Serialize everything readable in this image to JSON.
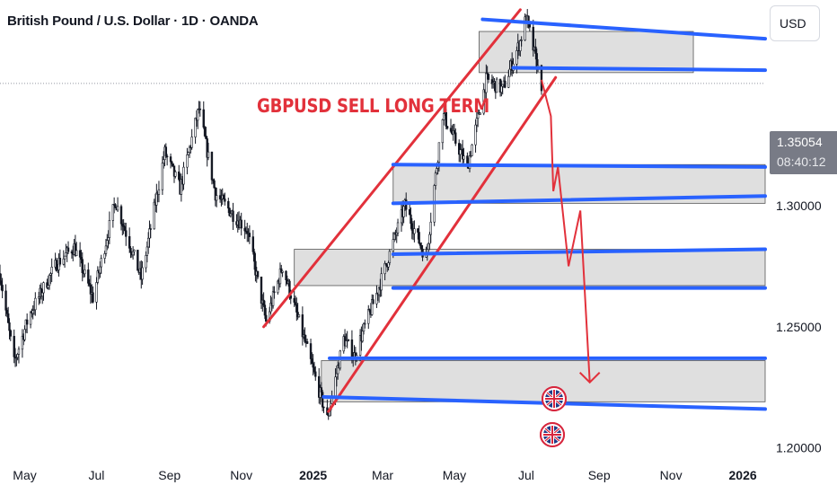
{
  "header": {
    "title": "British Pound / U.S. Dollar · 1D · OANDA",
    "currency": "USD"
  },
  "price_badge": {
    "price": "1.35054",
    "countdown": "08:40:12"
  },
  "annotation": "GBPUSD SELL LONG TERM",
  "icons": [
    "uk-flag-icon",
    "uk-flag-icon"
  ],
  "colors": {
    "candle": "#131722",
    "support_resistance": "#2962ff",
    "channel": "#e2313b",
    "projection": "#e2313b",
    "zone_fill": "#d9d9d9",
    "price_badge": "#787b86"
  },
  "chart_data": {
    "type": "candlestick",
    "symbol": "GBPUSD",
    "timeframe": "1D",
    "x_ticks": [
      "May",
      "Jul",
      "Sep",
      "Nov",
      "2025",
      "Mar",
      "May",
      "Jul",
      "Sep",
      "Nov",
      "2026"
    ],
    "x_range": [
      "2024-04-10",
      "2026-01-20"
    ],
    "y_ticks": [
      "1.20000",
      "1.25000",
      "1.30000"
    ],
    "ylim": [
      1.195,
      1.385
    ],
    "last_price": 1.35054,
    "price_path": [
      [
        "2024-04-10",
        1.272
      ],
      [
        "2024-04-22",
        1.235
      ],
      [
        "2024-05-05",
        1.255
      ],
      [
        "2024-05-28",
        1.276
      ],
      [
        "2024-06-12",
        1.283
      ],
      [
        "2024-06-28",
        1.262
      ],
      [
        "2024-07-17",
        1.302
      ],
      [
        "2024-08-08",
        1.27
      ],
      [
        "2024-08-28",
        1.322
      ],
      [
        "2024-09-10",
        1.307
      ],
      [
        "2024-09-26",
        1.34
      ],
      [
        "2024-10-10",
        1.305
      ],
      [
        "2024-10-24",
        1.297
      ],
      [
        "2024-11-06",
        1.29
      ],
      [
        "2024-11-22",
        1.252
      ],
      [
        "2024-12-06",
        1.275
      ],
      [
        "2024-12-20",
        1.252
      ],
      [
        "2025-01-13",
        1.212
      ],
      [
        "2025-01-27",
        1.245
      ],
      [
        "2025-02-05",
        1.238
      ],
      [
        "2025-02-25",
        1.265
      ],
      [
        "2025-03-20",
        1.3
      ],
      [
        "2025-04-07",
        1.278
      ],
      [
        "2025-04-21",
        1.338
      ],
      [
        "2025-05-12",
        1.316
      ],
      [
        "2025-05-28",
        1.352
      ],
      [
        "2025-06-11",
        1.348
      ],
      [
        "2025-06-26",
        1.368
      ],
      [
        "2025-07-01",
        1.378
      ],
      [
        "2025-07-14",
        1.35
      ]
    ],
    "zones": [
      {
        "from": "2025-05-22",
        "to": "2025-11-20",
        "low": 1.355,
        "high": 1.372
      },
      {
        "from": "2025-03-10",
        "to": "2026-01-20",
        "low": 1.301,
        "high": 1.317
      },
      {
        "from": "2024-12-16",
        "to": "2026-01-20",
        "low": 1.267,
        "high": 1.282
      },
      {
        "from": "2025-01-08",
        "to": "2026-01-20",
        "low": 1.219,
        "high": 1.236
      }
    ],
    "blue_lines": [
      {
        "x1": "2025-05-25",
        "y1": 1.377,
        "x2": "2026-01-20",
        "y2": 1.369
      },
      {
        "x1": "2025-06-20",
        "y1": 1.357,
        "x2": "2026-01-20",
        "y2": 1.356
      },
      {
        "x1": "2025-03-10",
        "y1": 1.317,
        "x2": "2026-01-20",
        "y2": 1.316
      },
      {
        "x1": "2025-03-10",
        "y1": 1.301,
        "x2": "2026-01-20",
        "y2": 1.304
      },
      {
        "x1": "2025-03-10",
        "y1": 1.28,
        "x2": "2026-01-20",
        "y2": 1.282
      },
      {
        "x1": "2025-03-10",
        "y1": 1.266,
        "x2": "2026-01-20",
        "y2": 1.266
      },
      {
        "x1": "2025-01-15",
        "y1": 1.237,
        "x2": "2026-01-20",
        "y2": 1.237
      },
      {
        "x1": "2025-01-10",
        "y1": 1.221,
        "x2": "2026-01-20",
        "y2": 1.216
      }
    ],
    "channel_lines": [
      {
        "x1": "2024-11-20",
        "y1": 1.25,
        "x2": "2025-06-26",
        "y2": 1.381
      },
      {
        "x1": "2025-01-14",
        "y1": 1.215,
        "x2": "2025-07-26",
        "y2": 1.353
      }
    ],
    "projection_path": [
      [
        "2025-07-14",
        1.352
      ],
      [
        "2025-07-22",
        1.337
      ],
      [
        "2025-07-24",
        1.306
      ],
      [
        "2025-07-28",
        1.316
      ],
      [
        "2025-08-06",
        1.275
      ],
      [
        "2025-08-16",
        1.298
      ],
      [
        "2025-08-24",
        1.227
      ]
    ],
    "grid": false
  }
}
